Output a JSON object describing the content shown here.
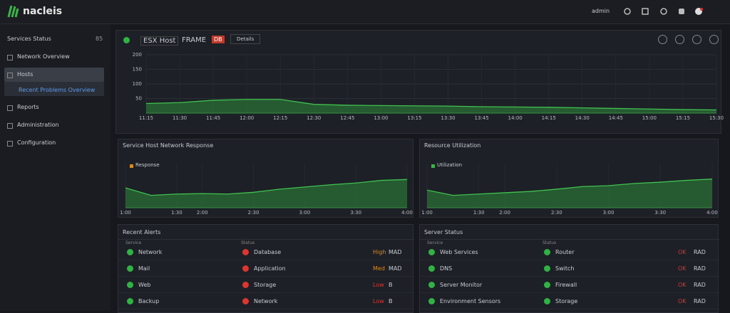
{
  "topbar": {
    "brand": "nacleis",
    "user": "admin"
  },
  "sidebar": {
    "title": "Services Status",
    "badge": "85",
    "items": [
      {
        "label": "Network Overview",
        "active": false
      },
      {
        "label": "Hosts",
        "active": true
      },
      {
        "label": "Recent Problems Overview",
        "active": false,
        "sub": true
      },
      {
        "label": "Reports",
        "active": false
      },
      {
        "label": "Administration",
        "active": false
      },
      {
        "label": "Configuration",
        "active": false
      }
    ]
  },
  "main_panel": {
    "title": "ESX Host",
    "subtitle": "FRAME",
    "tag": "DB",
    "button": "Details",
    "chart": {
      "type": "area",
      "color": "#2e8b3a",
      "ylim": [
        0,
        200
      ],
      "yticks": [
        50,
        100,
        150,
        200
      ],
      "categories": [
        "11:15",
        "11:30",
        "11:45",
        "12:00",
        "12:15",
        "12:30",
        "12:45",
        "13:00",
        "13:15",
        "13:30",
        "13:45",
        "14:00",
        "14:15",
        "14:30",
        "14:45",
        "15:00",
        "15:15",
        "15:30"
      ],
      "values": [
        33,
        36,
        44,
        47,
        47,
        30,
        27,
        26,
        25,
        24,
        22,
        21,
        20,
        18,
        16,
        14,
        12,
        11
      ]
    }
  },
  "mini_panels": [
    {
      "title": "Service Host Network Response",
      "legend": "Response",
      "legend_color": "#d98a1c",
      "chart": {
        "type": "area",
        "color": "#2e8b3a",
        "ylim": [
          0,
          100
        ],
        "categories": [
          "1:00",
          null,
          "1:30",
          "2:00",
          null,
          "2:30",
          null,
          "3:00",
          null,
          "3:30",
          null,
          "4:00"
        ],
        "values": [
          45,
          28,
          31,
          32,
          31,
          35,
          42,
          47,
          52,
          56,
          62,
          64
        ]
      }
    },
    {
      "title": "Resource Utilization",
      "legend": "Utilization",
      "legend_color": "#39b54a",
      "chart": {
        "type": "area",
        "color": "#2e8b3a",
        "ylim": [
          0,
          100
        ],
        "categories": [
          "1:00",
          null,
          "1:30",
          "2:00",
          null,
          "2:30",
          null,
          "3:00",
          null,
          "3:30",
          null,
          "4:00"
        ],
        "values": [
          40,
          28,
          31,
          34,
          37,
          42,
          48,
          50,
          55,
          58,
          62,
          65
        ]
      }
    }
  ],
  "tables": [
    {
      "title": "Recent Alerts",
      "columns": [
        "Service",
        "Status"
      ],
      "rows": [
        {
          "s1": "green",
          "n1": "Network",
          "s2": "red",
          "n2": "Database",
          "v1": "High",
          "v1c": "orange",
          "v2": "MAD"
        },
        {
          "s1": "green",
          "n1": "Mail",
          "s2": "red",
          "n2": "Application",
          "v1": "Med",
          "v1c": "orange",
          "v2": "MAD"
        },
        {
          "s1": "green",
          "n1": "Web",
          "s2": "red",
          "n2": "Storage",
          "v1": "Low",
          "v1c": "red",
          "v2": "B"
        },
        {
          "s1": "green",
          "n1": "Backup",
          "s2": "red",
          "n2": "Network",
          "v1": "Low",
          "v1c": "red",
          "v2": "B"
        }
      ]
    },
    {
      "title": "Server Status",
      "columns": [
        "Service",
        "Status"
      ],
      "rows": [
        {
          "s1": "green",
          "n1": "Web Services",
          "s2": "green",
          "n2": "Router",
          "v1": "OK",
          "v1c": "red",
          "v2": "RAD"
        },
        {
          "s1": "green",
          "n1": "DNS",
          "s2": "green",
          "n2": "Switch",
          "v1": "OK",
          "v1c": "red",
          "v2": "RAD"
        },
        {
          "s1": "green",
          "n1": "Server Monitor",
          "s2": "green",
          "n2": "Firewall",
          "v1": "OK",
          "v1c": "red",
          "v2": "RAD"
        },
        {
          "s1": "green",
          "n1": "Environment Sensors",
          "s2": "green",
          "n2": "Storage",
          "v1": "OK",
          "v1c": "red",
          "v2": "RAD"
        }
      ]
    }
  ]
}
